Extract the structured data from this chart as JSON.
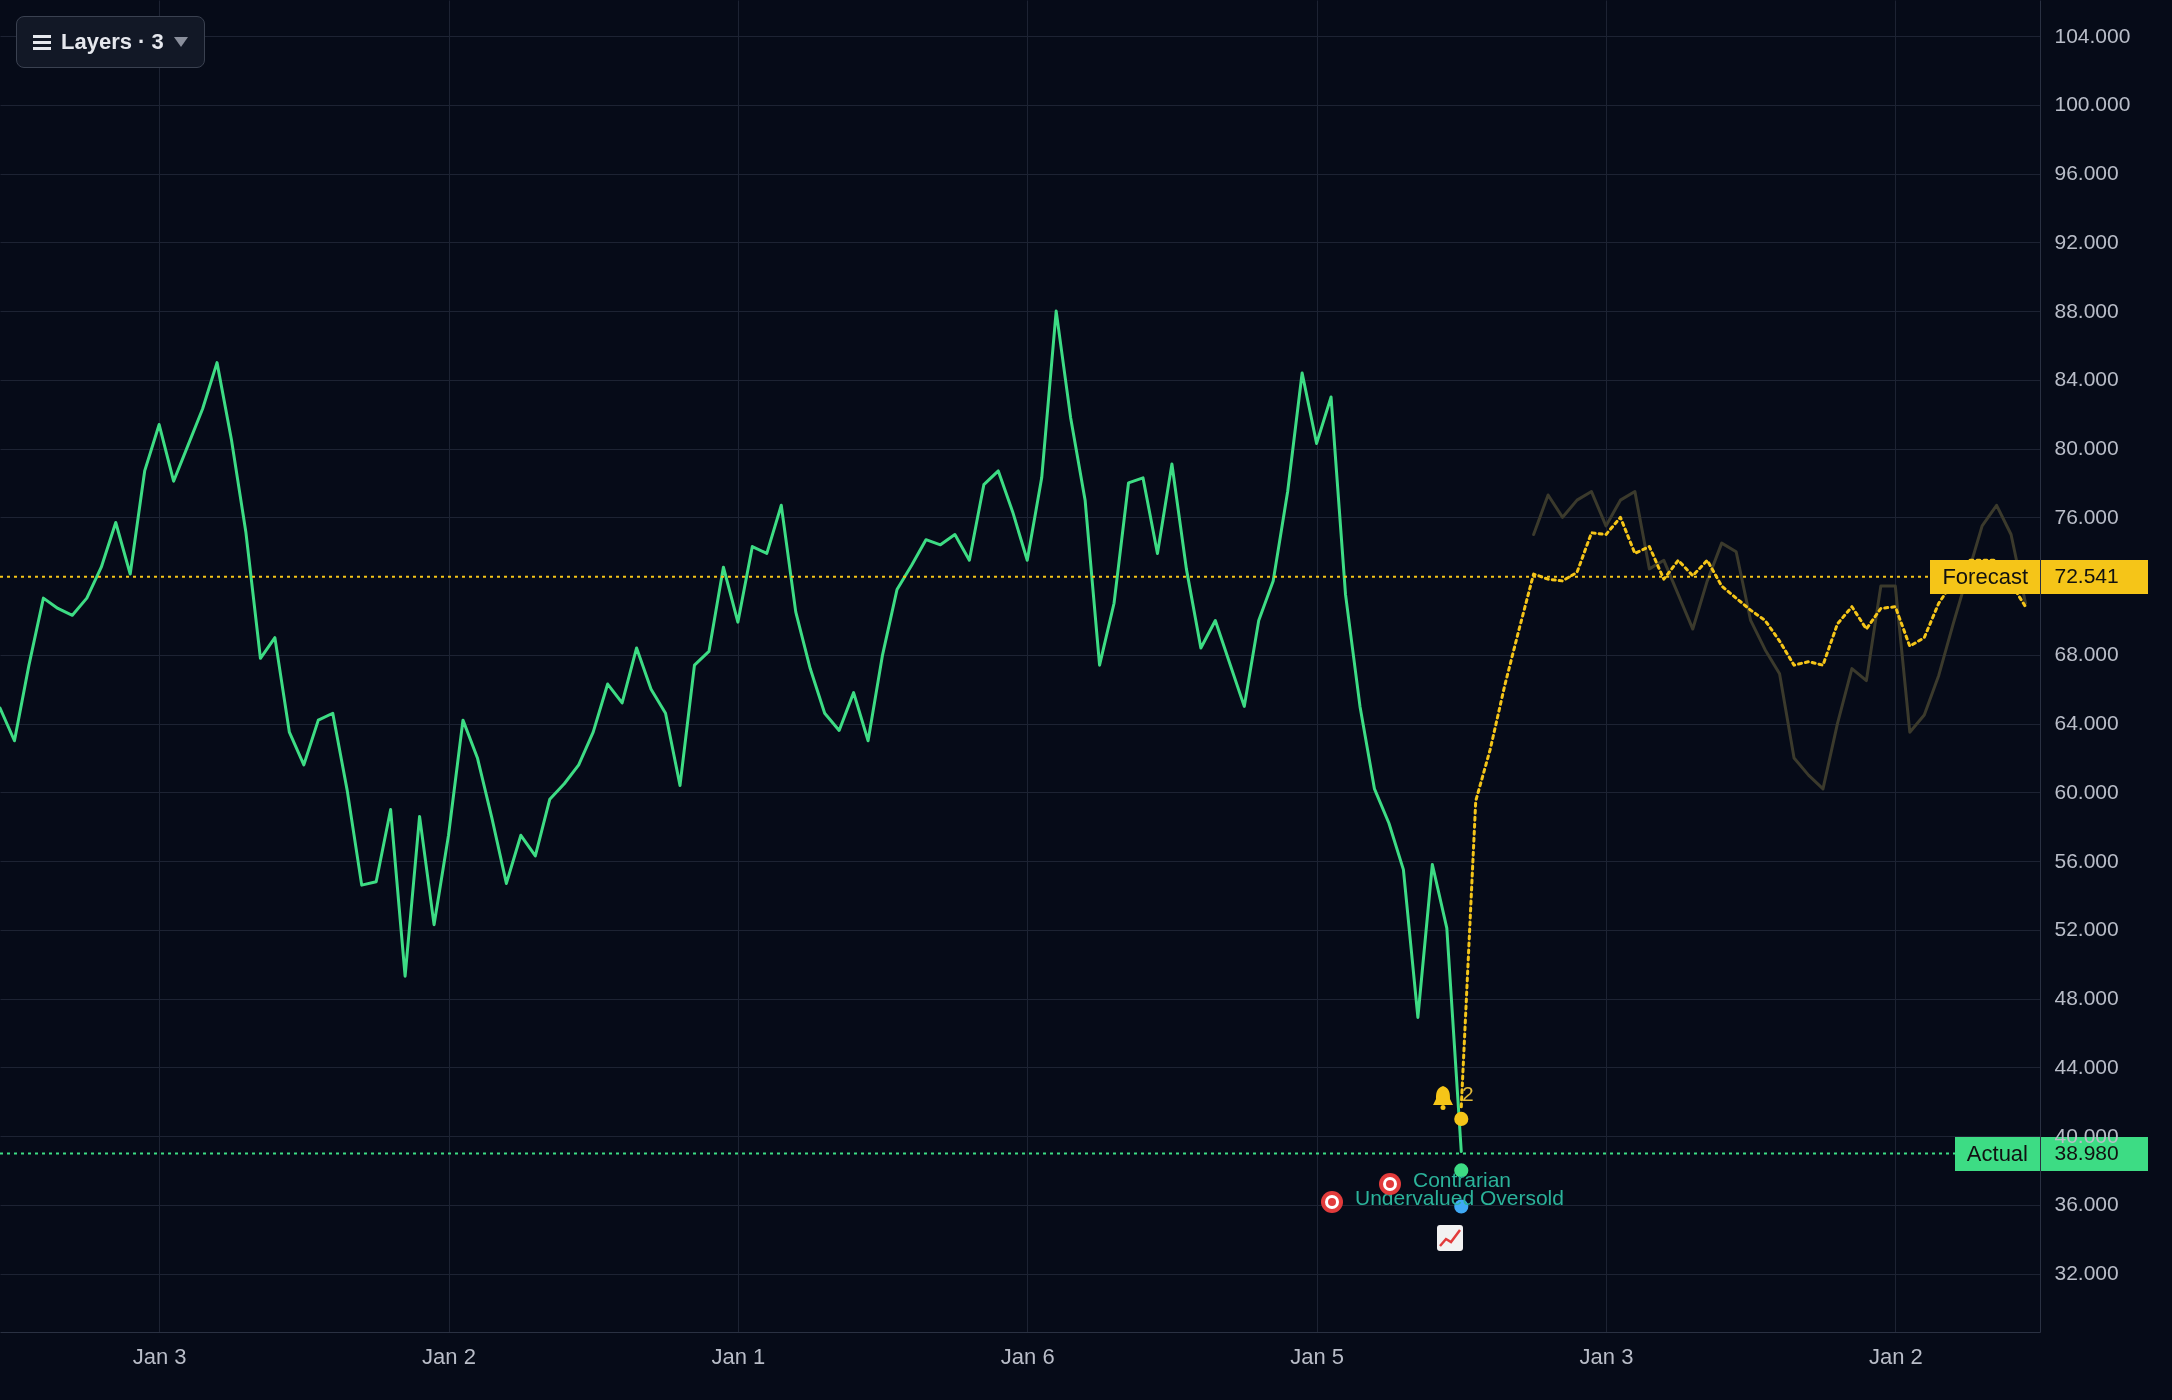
{
  "chart_data": {
    "type": "line",
    "categories": [
      null,
      null,
      null,
      null,
      null,
      null,
      null,
      null,
      null,
      null,
      null,
      "Jan 3",
      null,
      null,
      null,
      null,
      null,
      null,
      null,
      null,
      null,
      null,
      null,
      null,
      null,
      null,
      null,
      null,
      null,
      null,
      null,
      "Jan 2",
      null,
      null,
      null,
      null,
      null,
      null,
      null,
      null,
      null,
      null,
      null,
      null,
      null,
      null,
      null,
      null,
      null,
      null,
      null,
      "Jan 1",
      null,
      null,
      null,
      null,
      null,
      null,
      null,
      null,
      null,
      null,
      null,
      null,
      null,
      null,
      null,
      null,
      null,
      null,
      null,
      "Jan 6",
      null,
      null,
      null,
      null,
      null,
      null,
      null,
      null,
      null,
      null,
      null,
      null,
      null,
      null,
      null,
      null,
      null,
      null,
      null,
      "Jan 5",
      null,
      null,
      null,
      null,
      null,
      null,
      null,
      null,
      null,
      null,
      null,
      null,
      null,
      null,
      null,
      null,
      null,
      null,
      null,
      "Jan 3",
      null,
      null,
      null,
      null,
      null,
      null,
      null,
      null,
      null,
      null,
      null,
      null,
      null,
      null,
      null,
      null,
      null,
      null,
      null,
      "Jan 2",
      null,
      null,
      null,
      null,
      null,
      null,
      null,
      null,
      null,
      null
    ],
    "ylim": [
      28.6,
      106.1
    ],
    "yticks": [
      {
        "value": 32,
        "label": "32.000"
      },
      {
        "value": 36,
        "label": "36.000"
      },
      {
        "value": 40,
        "label": "40.000"
      },
      {
        "value": 44,
        "label": "44.000"
      },
      {
        "value": 48,
        "label": "48.000"
      },
      {
        "value": 52,
        "label": "52.000"
      },
      {
        "value": 56,
        "label": "56.000"
      },
      {
        "value": 60,
        "label": "60.000"
      },
      {
        "value": 64,
        "label": "64.000"
      },
      {
        "value": 68,
        "label": "68.000"
      },
      {
        "value": 76,
        "label": "76.000"
      },
      {
        "value": 80,
        "label": "80.000"
      },
      {
        "value": 84,
        "label": "84.000"
      },
      {
        "value": 88,
        "label": "88.000"
      },
      {
        "value": 92,
        "label": "92.000"
      },
      {
        "value": 96,
        "label": "96.000"
      },
      {
        "value": 100,
        "label": "100.000"
      },
      {
        "value": 104,
        "label": "104.000"
      },
      {
        "value": 72.541,
        "label": "72.541"
      },
      {
        "value": 38.98,
        "label": "38.980"
      }
    ],
    "grid": true,
    "series": [
      {
        "color": "#3b3a2c",
        "line_style": "solid",
        "values": [
          null,
          null,
          null,
          null,
          null,
          null,
          null,
          null,
          null,
          null,
          null,
          null,
          null,
          null,
          null,
          null,
          null,
          null,
          null,
          null,
          null,
          null,
          null,
          null,
          null,
          null,
          null,
          null,
          null,
          null,
          null,
          null,
          null,
          null,
          null,
          null,
          null,
          null,
          null,
          null,
          null,
          null,
          null,
          null,
          null,
          null,
          null,
          null,
          null,
          null,
          null,
          null,
          null,
          null,
          null,
          null,
          null,
          null,
          null,
          null,
          null,
          null,
          null,
          null,
          null,
          null,
          null,
          null,
          null,
          null,
          null,
          null,
          null,
          null,
          null,
          null,
          null,
          null,
          null,
          null,
          null,
          null,
          null,
          null,
          null,
          null,
          null,
          null,
          null,
          null,
          null,
          null,
          null,
          null,
          null,
          null,
          null,
          null,
          null,
          null,
          null,
          null,
          null,
          null,
          null,
          null,
          75,
          77.3,
          76,
          77,
          77.5,
          75.5,
          77,
          77.5,
          73,
          73.5,
          71.5,
          69.5,
          72.3,
          74.5,
          74,
          70,
          68.3,
          66.9,
          62,
          61,
          60.2,
          64,
          67.2,
          66.5,
          72,
          72,
          63.5,
          64.5,
          66.8,
          69.8,
          null,
          75.5,
          76.7,
          75,
          71,
          null
        ]
      },
      {
        "color": "#3ddc84",
        "line_style": "solid",
        "values": [
          64.9,
          63,
          67.4,
          71.3,
          70.7,
          70.3,
          71.3,
          73.1,
          75.7,
          72.7,
          78.7,
          81.4,
          78.1,
          80.2,
          82.3,
          85,
          80.5,
          75.1,
          67.8,
          69,
          63.5,
          61.6,
          64.2,
          64.6,
          60.1,
          54.6,
          54.8,
          59,
          49.3,
          58.6,
          52.3,
          57.5,
          64.2,
          62,
          58.5,
          54.7,
          57.5,
          56.3,
          59.6,
          60.5,
          61.6,
          63.5,
          66.3,
          65.2,
          68.4,
          66,
          64.6,
          60.4,
          67.4,
          68.2,
          73.1,
          69.9,
          74.3,
          73.9,
          76.7,
          70.5,
          67.2,
          64.6,
          63.6,
          65.8,
          63,
          68,
          71.8,
          73.2,
          74.7,
          74.4,
          75,
          73.5,
          77.9,
          78.7,
          76.3,
          73.5,
          78.3,
          88,
          81.8,
          77,
          67.4,
          71,
          78,
          78.3,
          73.9,
          79.1,
          73,
          68.4,
          70,
          67.5,
          65,
          70,
          72.3,
          77.5,
          84.4,
          80.3,
          83,
          71.5,
          65,
          60.2,
          58.2,
          55.5,
          46.9,
          55.8,
          52.1,
          39.1,
          null,
          null,
          null,
          null,
          null,
          null,
          null,
          null,
          null,
          null,
          null,
          null,
          null,
          null,
          null,
          null,
          null,
          null,
          null,
          null,
          null,
          null,
          null,
          null,
          null,
          null,
          null,
          null,
          null,
          null,
          null,
          null,
          null,
          null,
          null,
          null,
          null,
          null,
          null,
          null
        ]
      },
      {
        "color": "#f5c518",
        "line_style": "dotted",
        "values": [
          null,
          null,
          null,
          null,
          null,
          null,
          null,
          null,
          null,
          null,
          null,
          null,
          null,
          null,
          null,
          null,
          null,
          null,
          null,
          null,
          null,
          null,
          null,
          null,
          null,
          null,
          null,
          null,
          null,
          null,
          null,
          null,
          null,
          null,
          null,
          null,
          null,
          null,
          null,
          null,
          null,
          null,
          null,
          null,
          null,
          null,
          null,
          null,
          null,
          null,
          null,
          null,
          null,
          null,
          null,
          null,
          null,
          null,
          null,
          null,
          null,
          null,
          null,
          null,
          null,
          null,
          null,
          null,
          null,
          null,
          null,
          null,
          null,
          null,
          null,
          null,
          null,
          null,
          null,
          null,
          null,
          null,
          null,
          null,
          null,
          null,
          null,
          null,
          null,
          null,
          null,
          null,
          null,
          null,
          null,
          null,
          null,
          null,
          null,
          null,
          null,
          41.7,
          59.5,
          62.5,
          66.2,
          69.5,
          72.7,
          72.4,
          72.3,
          72.8,
          75.1,
          75,
          76,
          73.9,
          74.3,
          72.4,
          73.5,
          72.6,
          73.5,
          72,
          71.3,
          70.6,
          70,
          68.8,
          67.4,
          67.6,
          67.4,
          69.8,
          70.8,
          69.5,
          70.7,
          70.8,
          68.5,
          69,
          71,
          null,
          73.5,
          null,
          73.5,
          null,
          70.8,
          null
        ]
      },
      {
        "type": "scatter",
        "color": "#3ddc84",
        "marker": "circle",
        "values": [
          null,
          null,
          null,
          null,
          null,
          null,
          null,
          null,
          null,
          null,
          null,
          null,
          null,
          null,
          null,
          null,
          null,
          null,
          null,
          null,
          null,
          null,
          null,
          null,
          null,
          null,
          null,
          null,
          null,
          null,
          null,
          null,
          null,
          null,
          null,
          null,
          null,
          null,
          null,
          null,
          null,
          null,
          null,
          null,
          null,
          null,
          null,
          null,
          null,
          null,
          null,
          null,
          null,
          null,
          null,
          null,
          null,
          null,
          null,
          null,
          null,
          null,
          null,
          null,
          null,
          null,
          null,
          null,
          null,
          null,
          null,
          null,
          null,
          null,
          null,
          null,
          null,
          null,
          null,
          null,
          null,
          null,
          null,
          null,
          null,
          null,
          null,
          null,
          null,
          null,
          null,
          null,
          null,
          null,
          null,
          null,
          null,
          null,
          null,
          null,
          null,
          38.0,
          null,
          null,
          null,
          null,
          null,
          null,
          null,
          null,
          null,
          null,
          null,
          null,
          null,
          null,
          null,
          null,
          null,
          null,
          null,
          null,
          null,
          null,
          null,
          null,
          null,
          null,
          null,
          null,
          null,
          null,
          null,
          null,
          null,
          null,
          null,
          null,
          null,
          null,
          null,
          null
        ]
      },
      {
        "type": "scatter",
        "color": "#f5c518",
        "marker": "circle",
        "values": [
          null,
          null,
          null,
          null,
          null,
          null,
          null,
          null,
          null,
          null,
          null,
          null,
          null,
          null,
          null,
          null,
          null,
          null,
          null,
          null,
          null,
          null,
          null,
          null,
          null,
          null,
          null,
          null,
          null,
          null,
          null,
          null,
          null,
          null,
          null,
          null,
          null,
          null,
          null,
          null,
          null,
          null,
          null,
          null,
          null,
          null,
          null,
          null,
          null,
          null,
          null,
          null,
          null,
          null,
          null,
          null,
          null,
          null,
          null,
          null,
          null,
          null,
          null,
          null,
          null,
          null,
          null,
          null,
          null,
          null,
          null,
          null,
          null,
          null,
          null,
          null,
          null,
          null,
          null,
          null,
          null,
          null,
          null,
          null,
          null,
          null,
          null,
          null,
          null,
          null,
          null,
          null,
          null,
          null,
          null,
          null,
          null,
          null,
          null,
          null,
          null,
          41.0,
          null,
          null,
          null,
          null,
          null,
          null,
          null,
          null,
          null,
          null,
          null,
          null,
          null,
          null,
          null,
          null,
          null,
          null,
          null,
          null,
          null,
          null,
          null,
          null,
          null,
          null,
          null,
          null,
          null,
          null,
          null,
          null,
          null,
          null,
          null,
          null,
          null,
          null,
          null,
          null
        ]
      },
      {
        "type": "scatter",
        "color": "#3fa9f5",
        "marker": "circle",
        "values": [
          null,
          null,
          null,
          null,
          null,
          null,
          null,
          null,
          null,
          null,
          null,
          null,
          null,
          null,
          null,
          null,
          null,
          null,
          null,
          null,
          null,
          null,
          null,
          null,
          null,
          null,
          null,
          null,
          null,
          null,
          null,
          null,
          null,
          null,
          null,
          null,
          null,
          null,
          null,
          null,
          null,
          null,
          null,
          null,
          null,
          null,
          null,
          null,
          null,
          null,
          null,
          null,
          null,
          null,
          null,
          null,
          null,
          null,
          null,
          null,
          null,
          null,
          null,
          null,
          null,
          null,
          null,
          null,
          null,
          null,
          null,
          null,
          null,
          null,
          null,
          null,
          null,
          null,
          null,
          null,
          null,
          null,
          null,
          null,
          null,
          null,
          null,
          null,
          null,
          null,
          null,
          null,
          null,
          null,
          null,
          null,
          null,
          null,
          null,
          null,
          null,
          35.9,
          null,
          null,
          null,
          null,
          null,
          null,
          null,
          null,
          null,
          null,
          null,
          null,
          null,
          null,
          null,
          null,
          null,
          null,
          null,
          null,
          null,
          null,
          null,
          null,
          null,
          null,
          null,
          null,
          null,
          null,
          null,
          null,
          null,
          null,
          null,
          null,
          null,
          null,
          null,
          null
        ]
      }
    ],
    "ref_lines": [
      {
        "axis": "y",
        "value": 72.541,
        "label": "Forecast",
        "color": "#f5c518",
        "line_style": "dotted"
      },
      {
        "axis": "y",
        "value": 38.98,
        "label": "Actual",
        "color": "#3ddc84",
        "line_style": "dotted"
      }
    ],
    "annotations": [
      "Layers · 3",
      "2",
      "Contrarian",
      "Undervalued Oversold"
    ]
  }
}
